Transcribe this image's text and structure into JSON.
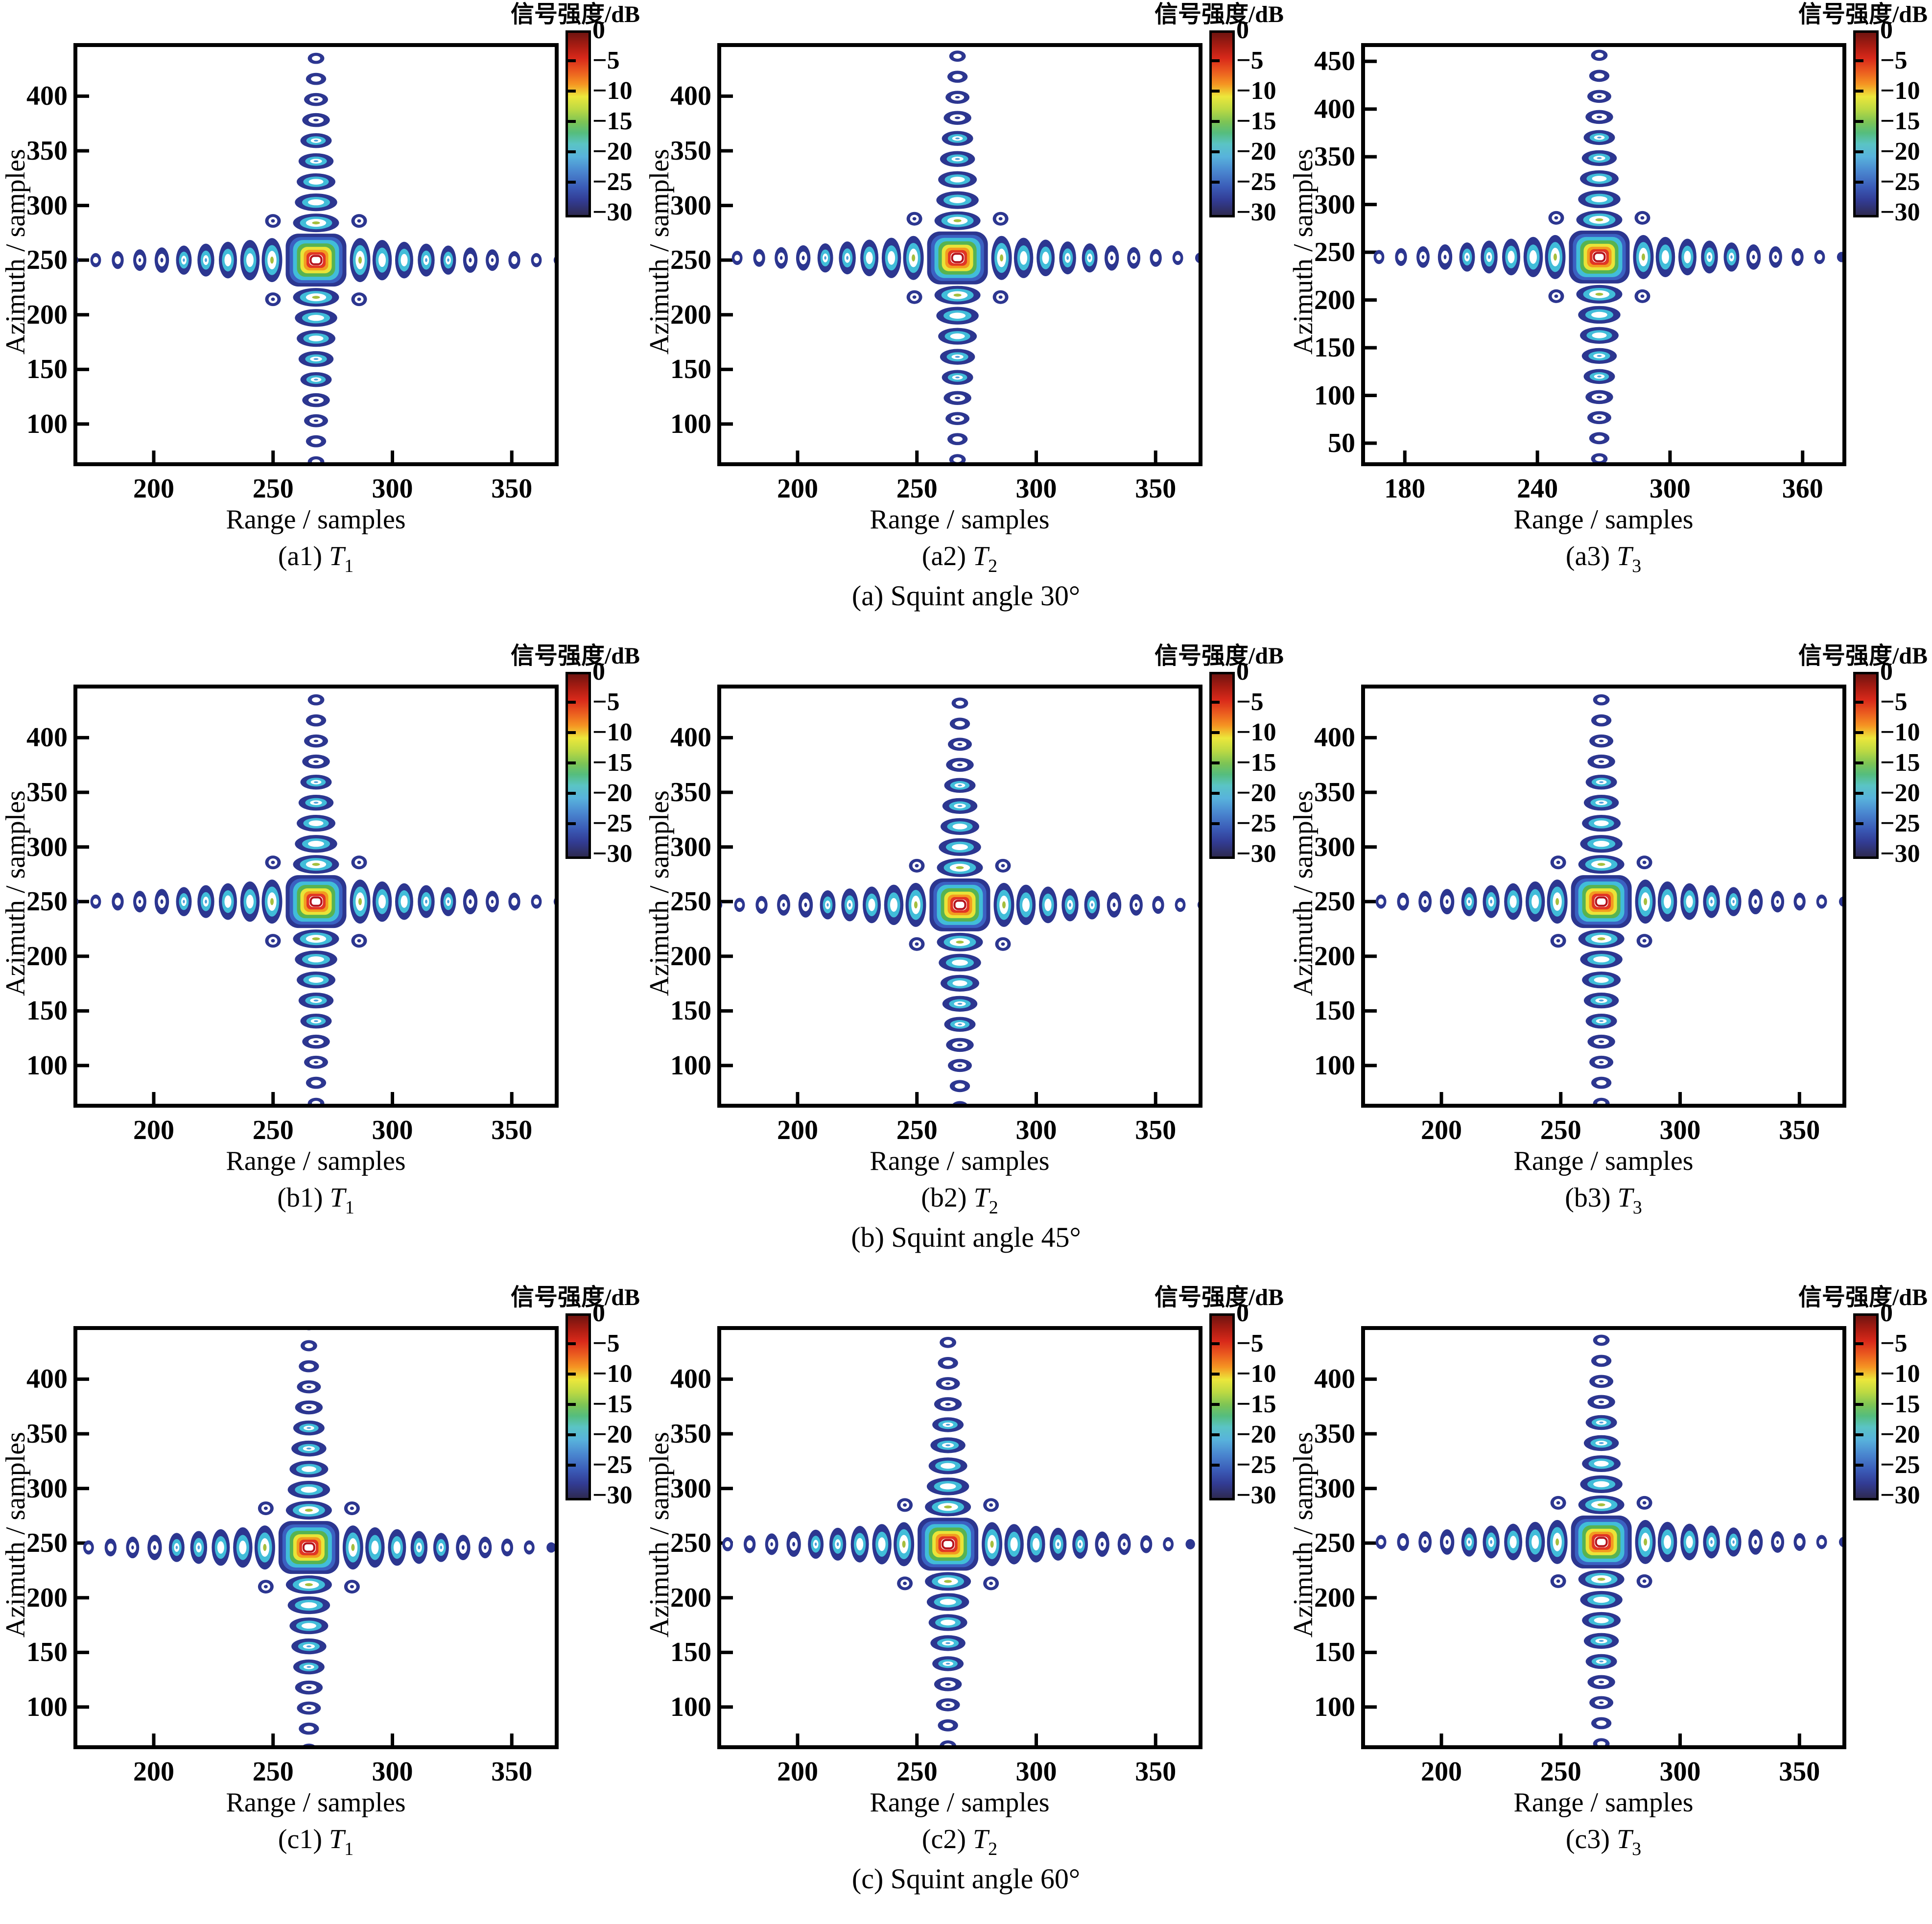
{
  "style": {
    "navy": "#2c3690",
    "blue": "#3b61c2",
    "cyan": "#41bdd9",
    "light_blue": "#4f9fd8",
    "green": "#57b351",
    "olive_dot": "#a5bf3e",
    "yellow": "#e9e438",
    "orange": "#f39a20",
    "red": "#e13524",
    "crimson": "#b5121b",
    "axis_color": "#000000"
  },
  "chart_data": {
    "type": "heatmap",
    "subtype": "contour-point-target-impulse-response",
    "xlabel": "Range / samples",
    "ylabel": "Azimuth / samples",
    "colorbar": {
      "title": "信号强度/dB",
      "tick_labels": [
        "0",
        "−5",
        "−10",
        "−15",
        "−20",
        "−25",
        "−30"
      ],
      "ticks_dB": [
        0,
        -5,
        -10,
        -15,
        -20,
        -25,
        -30
      ],
      "range_dB": [
        0,
        -30
      ]
    },
    "groups": [
      {
        "label": "(a) Squint angle 30°",
        "squint_angle_deg": 30,
        "panels": [
          {
            "label_prefix": "(a1)",
            "target": "T",
            "target_sub": "1",
            "xlim": [
              168,
              368
            ],
            "ylim": [
              65,
              445
            ],
            "xticks": [
              200,
              250,
              300,
              350
            ],
            "yticks": [
              400,
              350,
              300,
              250,
              200,
              150,
              100
            ],
            "peak": {
              "range": 268,
              "azimuth": 250,
              "value_dB": 0
            }
          },
          {
            "label_prefix": "(a2)",
            "target": "T",
            "target_sub": "2",
            "xlim": [
              168,
              368
            ],
            "ylim": [
              65,
              445
            ],
            "xticks": [
              200,
              250,
              300,
              350
            ],
            "yticks": [
              400,
              350,
              300,
              250,
              200,
              150,
              100
            ],
            "peak": {
              "range": 267,
              "azimuth": 252,
              "value_dB": 0
            }
          },
          {
            "label_prefix": "(a3)",
            "target": "T",
            "target_sub": "3",
            "xlim": [
              162,
              378
            ],
            "ylim": [
              30,
              465
            ],
            "xticks": [
              180,
              240,
              300,
              360
            ],
            "yticks": [
              450,
              400,
              350,
              300,
              250,
              200,
              150,
              100,
              50
            ],
            "peak": {
              "range": 268,
              "azimuth": 245,
              "value_dB": 0
            }
          }
        ]
      },
      {
        "label": "(b) Squint angle 45°",
        "squint_angle_deg": 45,
        "panels": [
          {
            "label_prefix": "(b1)",
            "target": "T",
            "target_sub": "1",
            "xlim": [
              168,
              368
            ],
            "ylim": [
              65,
              445
            ],
            "xticks": [
              200,
              250,
              300,
              350
            ],
            "yticks": [
              400,
              350,
              300,
              250,
              200,
              150,
              100
            ],
            "peak": {
              "range": 268,
              "azimuth": 250,
              "value_dB": 0
            }
          },
          {
            "label_prefix": "(b2)",
            "target": "T",
            "target_sub": "2",
            "xlim": [
              168,
              368
            ],
            "ylim": [
              65,
              445
            ],
            "xticks": [
              200,
              250,
              300,
              350
            ],
            "yticks": [
              400,
              350,
              300,
              250,
              200,
              150,
              100
            ],
            "peak": {
              "range": 268,
              "azimuth": 247,
              "value_dB": 0
            }
          },
          {
            "label_prefix": "(b3)",
            "target": "T",
            "target_sub": "3",
            "xlim": [
              168,
              368
            ],
            "ylim": [
              65,
              445
            ],
            "xticks": [
              200,
              250,
              300,
              350
            ],
            "yticks": [
              400,
              350,
              300,
              250,
              200,
              150,
              100
            ],
            "peak": {
              "range": 267,
              "azimuth": 250,
              "value_dB": 0
            }
          }
        ]
      },
      {
        "label": "(c) Squint angle 60°",
        "squint_angle_deg": 60,
        "panels": [
          {
            "label_prefix": "(c1)",
            "target": "T",
            "target_sub": "1",
            "xlim": [
              168,
              368
            ],
            "ylim": [
              65,
              445
            ],
            "xticks": [
              200,
              250,
              300,
              350
            ],
            "yticks": [
              400,
              350,
              300,
              250,
              200,
              150,
              100
            ],
            "peak": {
              "range": 265,
              "azimuth": 246,
              "value_dB": 0
            }
          },
          {
            "label_prefix": "(c2)",
            "target": "T",
            "target_sub": "2",
            "xlim": [
              168,
              368
            ],
            "ylim": [
              65,
              445
            ],
            "xticks": [
              200,
              250,
              300,
              350
            ],
            "yticks": [
              400,
              350,
              300,
              250,
              200,
              150,
              100
            ],
            "peak": {
              "range": 263,
              "azimuth": 249,
              "value_dB": 0
            }
          },
          {
            "label_prefix": "(c3)",
            "target": "T",
            "target_sub": "3",
            "xlim": [
              168,
              368
            ],
            "ylim": [
              65,
              445
            ],
            "xticks": [
              200,
              250,
              300,
              350
            ],
            "yticks": [
              400,
              350,
              300,
              250,
              200,
              150,
              100
            ],
            "peak": {
              "range": 267,
              "azimuth": 251,
              "value_dB": 0
            }
          }
        ]
      }
    ]
  }
}
